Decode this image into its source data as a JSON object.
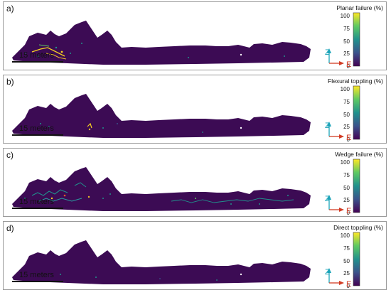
{
  "colorbar": {
    "ticks": [
      "100",
      "75",
      "50",
      "25",
      "0"
    ],
    "gradient": [
      "#fde725",
      "#5ec962",
      "#21918c",
      "#3b528b",
      "#440154"
    ]
  },
  "rock_color": "#3c0b54",
  "axes": {
    "z_label": "Z",
    "e_label": "E",
    "z_color": "#1aa3b8",
    "e_color": "#d23b24"
  },
  "scale_label": "15 meters",
  "panels": [
    {
      "letter": "a)",
      "title": "Planar failure (%)"
    },
    {
      "letter": "b)",
      "title": "Flexural toppling (%)"
    },
    {
      "letter": "c)",
      "title": "Wedge failure (%)"
    },
    {
      "letter": "d)",
      "title": "Direct toppling (%)"
    }
  ]
}
